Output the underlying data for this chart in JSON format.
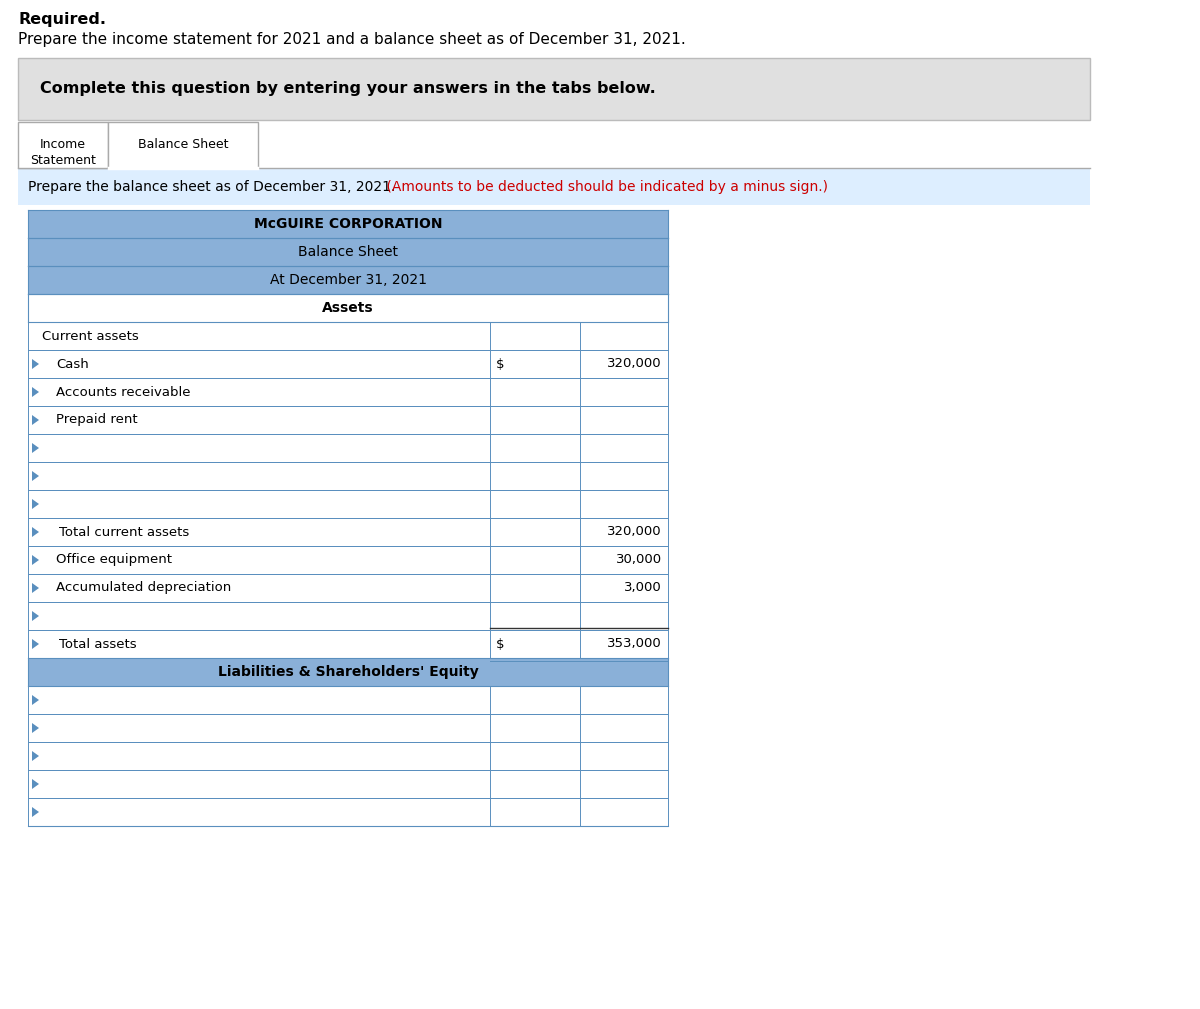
{
  "title_required": "Required.",
  "title_prepare": "Prepare the income statement for 2021 and a balance sheet as of December 31, 2021.",
  "complete_box_text": "Complete this question by entering your answers in the tabs below.",
  "tab1_line1": "Income",
  "tab1_line2": "Statement",
  "tab2": "Balance Sheet",
  "prepare_note_black": "Prepare the balance sheet as of December 31, 2021.",
  "prepare_note_red": " (Amounts to be deducted should be indicated by a minus sign.)",
  "corp_name": "McGUIRE CORPORATION",
  "sheet_title": "Balance Sheet",
  "sheet_date": "At December 31, 2021",
  "assets_header": "Assets",
  "liab_header": "Liabilities & Shareholders' Equity",
  "header_bg": "#8ab0d8",
  "complete_box_bg": "#e0e0e0",
  "inst_bar_bg": "#ddeeff",
  "border_color": "#5a8fbe",
  "white": "#ffffff",
  "fig_width": 12.0,
  "fig_height": 10.09
}
